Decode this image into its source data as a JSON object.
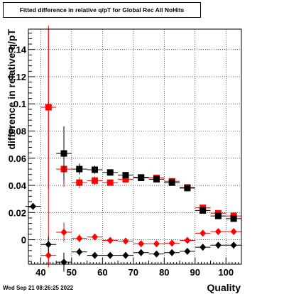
{
  "chart_data": {
    "type": "scatter",
    "title": "Fitted difference in relative q/pT for Global Rec All NoHits",
    "xlabel": "Quality",
    "ylabel": "difference in relative q/pT",
    "xlim": [
      36,
      105
    ],
    "ylim": [
      -0.018,
      0.155
    ],
    "x_ticks": [
      40,
      50,
      60,
      70,
      80,
      90,
      100
    ],
    "y_ticks": [
      0,
      0.02,
      0.04,
      0.06,
      0.08,
      0.1,
      0.12,
      0.14
    ],
    "y_tick_labels": [
      "0",
      "0.02",
      "0.04",
      "0.06",
      "0.08",
      "0.1",
      "0.12",
      "0.14"
    ],
    "grid": true,
    "vertical_line_x": 42.5,
    "series": [
      {
        "color": "#ff0000",
        "marker": "square",
        "points": [
          {
            "x": 42.5,
            "y": 0.0975,
            "yerr": 0.06
          },
          {
            "x": 47.5,
            "y": 0.052,
            "yerr": 0.013
          },
          {
            "x": 52.5,
            "y": 0.042,
            "yerr": 0.004
          },
          {
            "x": 57.5,
            "y": 0.0435,
            "yerr": 0.003
          },
          {
            "x": 62.5,
            "y": 0.042,
            "yerr": 0.002
          },
          {
            "x": 67.5,
            "y": 0.0445,
            "yerr": 0.002
          },
          {
            "x": 72.5,
            "y": 0.046,
            "yerr": 0.002
          },
          {
            "x": 77.5,
            "y": 0.0455,
            "yerr": 0.002
          },
          {
            "x": 82.5,
            "y": 0.043,
            "yerr": 0.002
          },
          {
            "x": 87.5,
            "y": 0.0385,
            "yerr": 0.002
          },
          {
            "x": 92.5,
            "y": 0.0235,
            "yerr": 0.002
          },
          {
            "x": 97.5,
            "y": 0.0195,
            "yerr": 0.002
          },
          {
            "x": 102.5,
            "y": 0.0175,
            "yerr": 0.002
          }
        ]
      },
      {
        "color": "#000000",
        "marker": "square",
        "points": [
          {
            "x": 47.5,
            "y": 0.0635,
            "yerr": 0.02
          },
          {
            "x": 52.5,
            "y": 0.052,
            "yerr": 0.004
          },
          {
            "x": 57.5,
            "y": 0.0515,
            "yerr": 0.003
          },
          {
            "x": 62.5,
            "y": 0.0495,
            "yerr": 0.002
          },
          {
            "x": 67.5,
            "y": 0.0475,
            "yerr": 0.002
          },
          {
            "x": 72.5,
            "y": 0.0455,
            "yerr": 0.002
          },
          {
            "x": 77.5,
            "y": 0.0445,
            "yerr": 0.002
          },
          {
            "x": 82.5,
            "y": 0.042,
            "yerr": 0.002
          },
          {
            "x": 87.5,
            "y": 0.038,
            "yerr": 0.002
          },
          {
            "x": 92.5,
            "y": 0.0215,
            "yerr": 0.002
          },
          {
            "x": 97.5,
            "y": 0.0175,
            "yerr": 0.002
          },
          {
            "x": 102.5,
            "y": 0.0155,
            "yerr": 0.002
          }
        ]
      },
      {
        "color": "#ff0000",
        "marker": "diamond",
        "points": [
          {
            "x": 42.5,
            "y": -0.0115,
            "yerr": 0.009
          },
          {
            "x": 47.5,
            "y": 0.0055,
            "yerr": 0.007
          },
          {
            "x": 52.5,
            "y": 0.001,
            "yerr": 0.003
          },
          {
            "x": 57.5,
            "y": 0.002,
            "yerr": 0.002
          },
          {
            "x": 62.5,
            "y": -0.0005,
            "yerr": 0.001
          },
          {
            "x": 67.5,
            "y": -0.001,
            "yerr": 0.001
          },
          {
            "x": 72.5,
            "y": -0.003,
            "yerr": 0.001
          },
          {
            "x": 77.5,
            "y": -0.003,
            "yerr": 0.001
          },
          {
            "x": 82.5,
            "y": -0.0025,
            "yerr": 0.001
          },
          {
            "x": 87.5,
            "y": -0.0005,
            "yerr": 0.001
          },
          {
            "x": 92.5,
            "y": 0.0048,
            "yerr": 0.001
          },
          {
            "x": 97.5,
            "y": 0.006,
            "yerr": 0.001
          },
          {
            "x": 102.5,
            "y": 0.006,
            "yerr": 0.001
          }
        ]
      },
      {
        "color": "#000000",
        "marker": "diamond",
        "points": [
          {
            "x": 37.5,
            "y": 0.0245,
            "yerr": 0.0
          },
          {
            "x": 42.5,
            "y": -0.0035,
            "yerr": 0.006
          },
          {
            "x": 47.5,
            "y": -0.0165,
            "yerr": 0.007
          },
          {
            "x": 52.5,
            "y": -0.009,
            "yerr": 0.003
          },
          {
            "x": 57.5,
            "y": -0.0115,
            "yerr": 0.002
          },
          {
            "x": 62.5,
            "y": -0.0115,
            "yerr": 0.001
          },
          {
            "x": 67.5,
            "y": -0.0115,
            "yerr": 0.001
          },
          {
            "x": 72.5,
            "y": -0.0095,
            "yerr": 0.001
          },
          {
            "x": 77.5,
            "y": -0.0105,
            "yerr": 0.001
          },
          {
            "x": 82.5,
            "y": -0.0095,
            "yerr": 0.001
          },
          {
            "x": 87.5,
            "y": -0.0085,
            "yerr": 0.001
          },
          {
            "x": 92.5,
            "y": -0.0055,
            "yerr": 0.001
          },
          {
            "x": 97.5,
            "y": -0.004,
            "yerr": 0.001
          },
          {
            "x": 102.5,
            "y": -0.004,
            "yerr": 0.001
          }
        ]
      }
    ]
  },
  "footer": {
    "date": "Wed Sep 21 08:26:25 2022"
  }
}
